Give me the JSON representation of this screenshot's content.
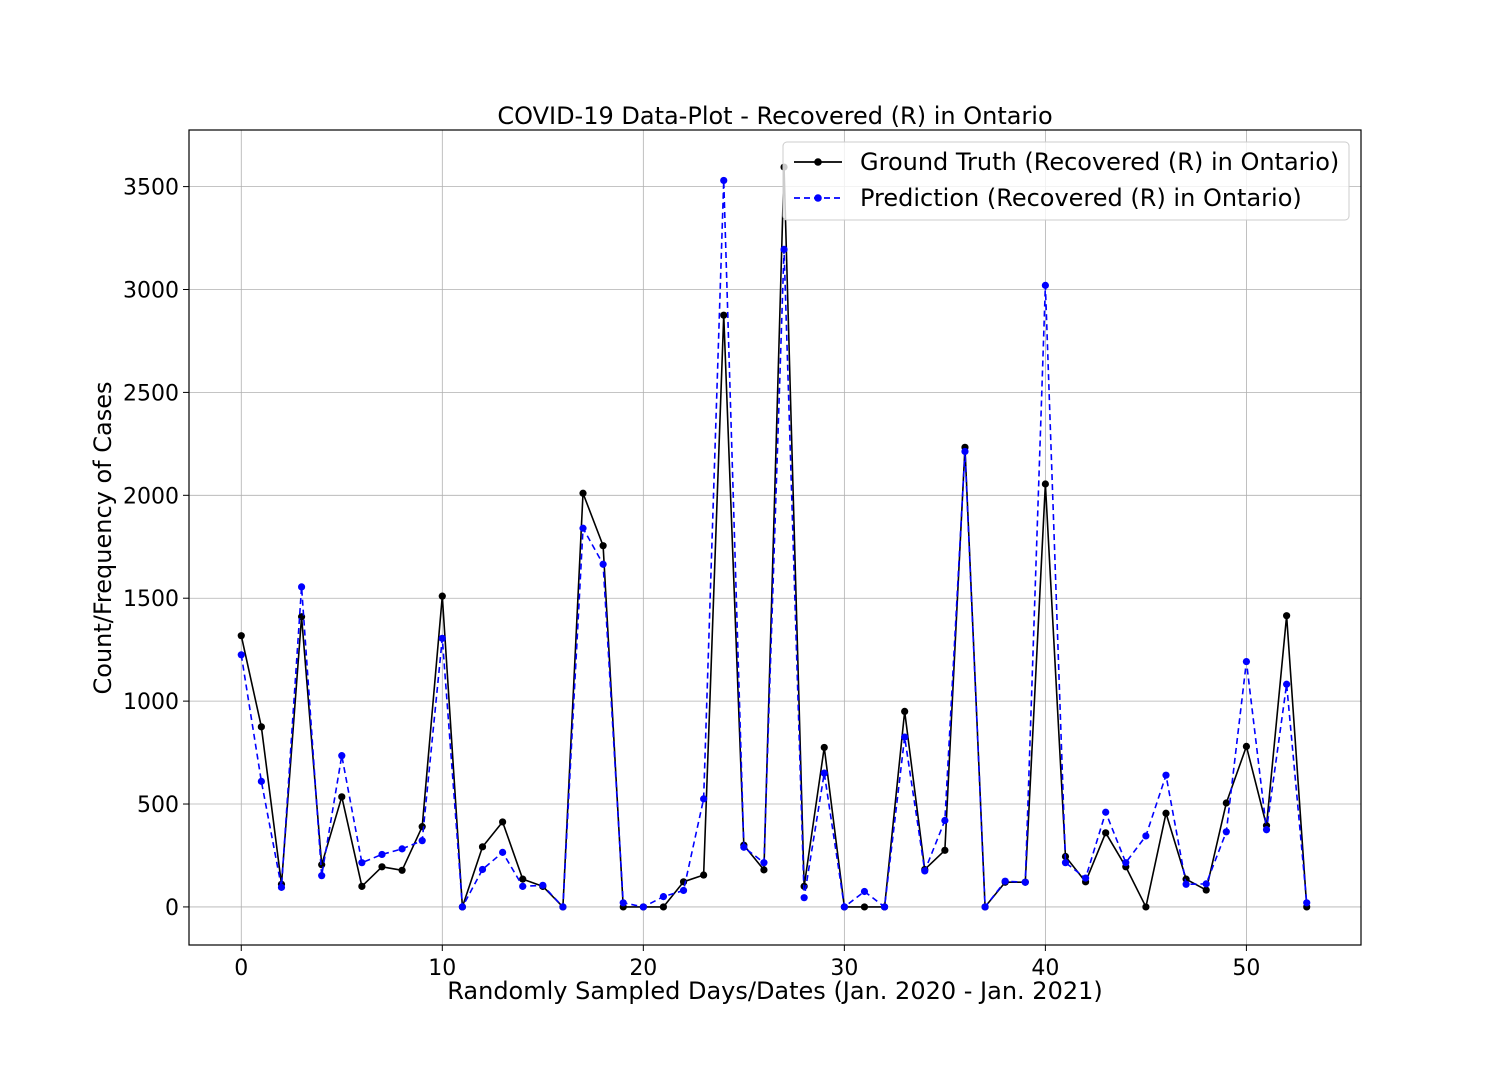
{
  "chart_data": {
    "type": "line",
    "title": "COVID-19 Data-Plot - Recovered (R) in Ontario",
    "xlabel": "Randomly Sampled Days/Dates (Jan. 2020 - Jan. 2021)",
    "ylabel": "Count/Frequency of Cases",
    "xlim": [
      -2.6,
      55.7
    ],
    "ylim": [
      -185,
      3775
    ],
    "xticks": [
      0,
      10,
      20,
      30,
      40,
      50
    ],
    "yticks": [
      0,
      500,
      1000,
      1500,
      2000,
      2500,
      3000,
      3500
    ],
    "grid": true,
    "legend_position": "top-right",
    "x": [
      0,
      1,
      2,
      3,
      4,
      5,
      6,
      7,
      8,
      9,
      10,
      11,
      12,
      13,
      14,
      15,
      16,
      17,
      18,
      19,
      20,
      21,
      22,
      23,
      24,
      25,
      26,
      27,
      28,
      29,
      30,
      31,
      32,
      33,
      34,
      35,
      36,
      37,
      38,
      39,
      40,
      41,
      42,
      43,
      44,
      45,
      46,
      47,
      48,
      49,
      50,
      51,
      52,
      53
    ],
    "series": [
      {
        "name": "Ground Truth (Recovered (R) in Ontario)",
        "color": "#000000",
        "linestyle": "solid",
        "values": [
          1318,
          875,
          110,
          1410,
          205,
          535,
          100,
          195,
          178,
          390,
          1510,
          0,
          292,
          413,
          135,
          100,
          0,
          2010,
          1755,
          0,
          0,
          0,
          122,
          155,
          2875,
          300,
          180,
          3595,
          100,
          775,
          0,
          0,
          0,
          950,
          182,
          275,
          2233,
          0,
          120,
          120,
          2055,
          245,
          122,
          360,
          195,
          0,
          455,
          135,
          82,
          505,
          780,
          395,
          1415,
          0
        ]
      },
      {
        "name": "Prediction (Recovered (R) in Ontario)",
        "color": "#0000ff",
        "linestyle": "dashed",
        "values": [
          1225,
          610,
          95,
          1555,
          152,
          735,
          215,
          255,
          282,
          322,
          1305,
          0,
          182,
          265,
          100,
          105,
          0,
          1840,
          1665,
          20,
          0,
          50,
          80,
          525,
          3530,
          290,
          215,
          3195,
          45,
          650,
          0,
          75,
          0,
          825,
          175,
          420,
          2213,
          0,
          125,
          120,
          3020,
          215,
          140,
          460,
          215,
          345,
          640,
          110,
          112,
          365,
          1192,
          375,
          1082,
          20
        ]
      }
    ]
  }
}
